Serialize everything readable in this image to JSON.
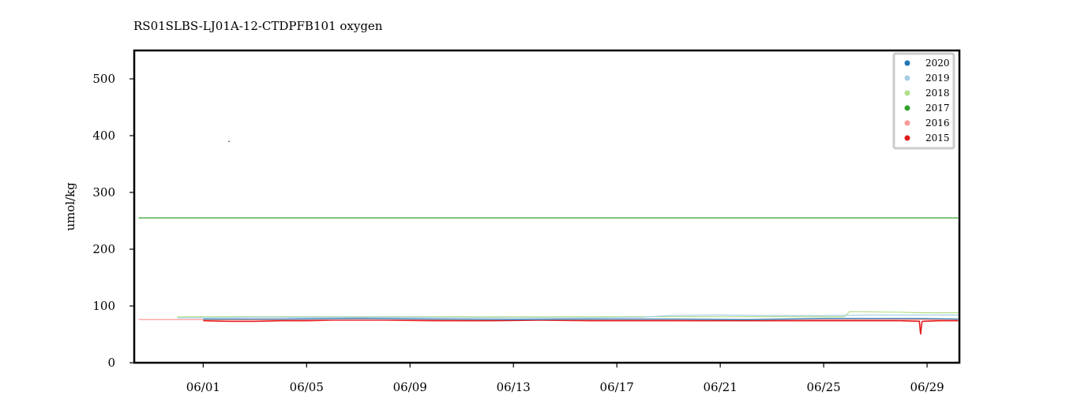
{
  "chart_data": {
    "type": "line",
    "title": "RS01SLBS-LJ01A-12-CTDPFB101 oxygen",
    "xlabel": "",
    "ylabel": "umol/kg",
    "x_range": [
      "05/30 08:00",
      "06/30 06:00"
    ],
    "ylim": [
      0,
      550
    ],
    "x_ticks": [
      {
        "label": "06/01",
        "day": 1
      },
      {
        "label": "06/05",
        "day": 5
      },
      {
        "label": "06/09",
        "day": 9
      },
      {
        "label": "06/13",
        "day": 13
      },
      {
        "label": "06/17",
        "day": 17
      },
      {
        "label": "06/21",
        "day": 21
      },
      {
        "label": "06/25",
        "day": 25
      },
      {
        "label": "06/29",
        "day": 29
      }
    ],
    "y_ticks": [
      {
        "label": "0",
        "value": 0
      },
      {
        "label": "100",
        "value": 100
      },
      {
        "label": "200",
        "value": 200
      },
      {
        "label": "300",
        "value": 300
      },
      {
        "label": "400",
        "value": 400
      },
      {
        "label": "500",
        "value": 500
      }
    ],
    "grid": false,
    "legend_position": "top-right",
    "series": [
      {
        "name": "2020",
        "color": "#1f78b4",
        "x": [
          1,
          4,
          7,
          10,
          13,
          16,
          19,
          22,
          25,
          27,
          28.8,
          30.2
        ],
        "y": [
          77,
          77,
          78,
          77,
          76,
          77,
          77,
          76,
          78,
          78,
          78,
          77
        ]
      },
      {
        "name": "2019",
        "color": "#a6cee3",
        "x": [
          0,
          3,
          6,
          9,
          12,
          15,
          18,
          19,
          21,
          23,
          25,
          27,
          30.2
        ],
        "y": [
          79,
          80,
          80,
          80,
          79,
          79,
          80,
          83,
          84,
          83,
          83,
          84,
          84
        ]
      },
      {
        "name": "2018",
        "color": "#b2df8a",
        "x": [
          0,
          5,
          10,
          15,
          20,
          25,
          25.8,
          26,
          28,
          28.8,
          30.2
        ],
        "y": [
          81,
          81,
          81,
          81,
          81,
          81,
          81,
          90,
          89,
          88,
          88
        ]
      },
      {
        "name": "2017",
        "color": "#33a02c",
        "x": [
          -1.5,
          30.2
        ],
        "y": [
          255,
          255
        ]
      },
      {
        "name": "2016",
        "color": "#fb9a99",
        "x": [
          -1.5,
          30.2
        ],
        "y": [
          76,
          76
        ]
      },
      {
        "name": "2015",
        "color": "#e31a1c",
        "x": [
          1,
          2,
          3,
          4,
          5,
          6,
          8,
          10,
          12,
          14,
          16,
          18,
          20,
          22,
          24,
          25,
          26,
          27,
          28,
          28.7,
          28.75,
          28.8,
          28.85,
          29.5,
          30.2
        ],
        "y": [
          74,
          73,
          73,
          74,
          74,
          75,
          75,
          74,
          74,
          75,
          74,
          74,
          74,
          74,
          74,
          74,
          74,
          74,
          74,
          73,
          50,
          72,
          73,
          74,
          74
        ]
      }
    ],
    "annotations": [
      {
        "x": 2.0,
        "y": 390,
        "color": "#000000"
      }
    ]
  }
}
